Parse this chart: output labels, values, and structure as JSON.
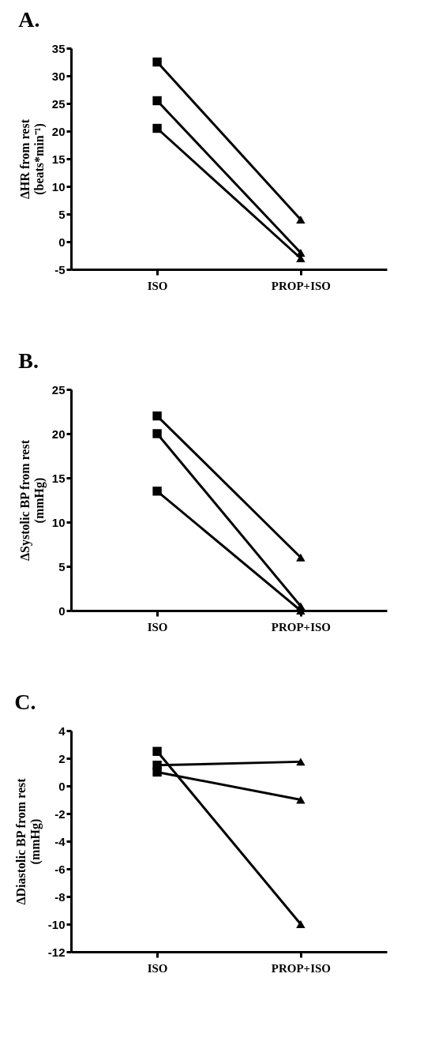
{
  "chart_data": [
    {
      "type": "line",
      "title": "A.",
      "ylabel": "ΔHR from rest\n(beats*min⁻¹)",
      "categories": [
        "ISO",
        "PROP+ISO"
      ],
      "ylim": [
        -5,
        35
      ],
      "yticks": [
        -5,
        0,
        5,
        10,
        15,
        20,
        25,
        30,
        35
      ],
      "series": [
        {
          "type": "line",
          "color": "#000000",
          "values": [
            32.5,
            4
          ]
        },
        {
          "type": "line",
          "color": "#000000",
          "values": [
            25.5,
            -2
          ]
        },
        {
          "type": "line",
          "color": "#000000",
          "values": [
            20.5,
            -3
          ]
        },
        {
          "type": "scatter",
          "marker": "square",
          "color": "#000000",
          "x": [
            "ISO",
            "ISO",
            "ISO"
          ],
          "values": [
            32.5,
            25.5,
            20.5
          ]
        },
        {
          "type": "scatter",
          "marker": "triangle",
          "color": "#000000",
          "x": [
            "PROP+ISO",
            "PROP+ISO",
            "PROP+ISO"
          ],
          "values": [
            4,
            -2,
            -3
          ]
        }
      ]
    },
    {
      "type": "line",
      "title": "B.",
      "ylabel": "ΔSystolic BP from rest\n(mmHg)",
      "categories": [
        "ISO",
        "PROP+ISO"
      ],
      "ylim": [
        0,
        25
      ],
      "yticks": [
        0,
        5,
        10,
        15,
        20,
        25
      ],
      "series": [
        {
          "type": "line",
          "color": "#000000",
          "values": [
            22,
            6
          ]
        },
        {
          "type": "line",
          "color": "#000000",
          "values": [
            20,
            0.5
          ]
        },
        {
          "type": "line",
          "color": "#000000",
          "values": [
            13.5,
            0
          ]
        },
        {
          "type": "scatter",
          "marker": "square",
          "color": "#000000",
          "x": [
            "ISO",
            "ISO",
            "ISO"
          ],
          "values": [
            22,
            20,
            13.5
          ]
        },
        {
          "type": "scatter",
          "marker": "triangle",
          "color": "#000000",
          "x": [
            "PROP+ISO",
            "PROP+ISO",
            "PROP+ISO"
          ],
          "values": [
            6,
            0.5,
            0
          ]
        }
      ]
    },
    {
      "type": "line",
      "title": "C.",
      "ylabel": "ΔDiastolic BP from rest\n(mmHg)",
      "categories": [
        "ISO",
        "PROP+ISO"
      ],
      "ylim": [
        -12,
        4
      ],
      "yticks": [
        -12,
        -10,
        -8,
        -6,
        -4,
        -2,
        0,
        2,
        4
      ],
      "series": [
        {
          "type": "line",
          "color": "#000000",
          "values": [
            2.5,
            -10
          ]
        },
        {
          "type": "line",
          "color": "#000000",
          "values": [
            1.5,
            1.75
          ]
        },
        {
          "type": "line",
          "color": "#000000",
          "values": [
            1,
            -1
          ]
        },
        {
          "type": "scatter",
          "marker": "square",
          "color": "#000000",
          "x": [
            "ISO",
            "ISO",
            "ISO"
          ],
          "values": [
            2.5,
            1.5,
            1
          ]
        },
        {
          "type": "scatter",
          "marker": "triangle",
          "color": "#000000",
          "x": [
            "PROP+ISO",
            "PROP+ISO",
            "PROP+ISO"
          ],
          "values": [
            -10,
            1.75,
            -1
          ]
        }
      ]
    }
  ]
}
